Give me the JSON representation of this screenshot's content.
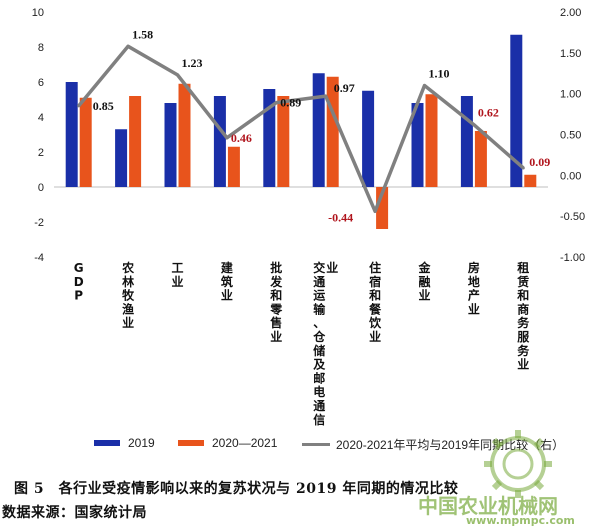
{
  "chart_data": {
    "type": "bar",
    "categories": [
      "GDP",
      "农林牧渔业",
      "工业",
      "建筑业",
      "批发和零售业",
      "交通运输、仓储及邮电通信业",
      "住宿和餐饮业",
      "金融业",
      "房地产业",
      "租赁和商务服务业"
    ],
    "series": [
      {
        "name": "2019",
        "type": "bar",
        "axis": "left",
        "color": "#1a2fa8",
        "values": [
          6.0,
          3.3,
          4.8,
          5.2,
          5.6,
          6.5,
          5.5,
          4.8,
          5.2,
          8.7
        ]
      },
      {
        "name": "2020—2021",
        "type": "bar",
        "axis": "left",
        "color": "#e8541c",
        "values": [
          5.1,
          5.2,
          5.9,
          2.3,
          5.2,
          6.3,
          -2.4,
          5.3,
          3.2,
          0.7
        ]
      },
      {
        "name": "2020-2021年平均与2019年同期比较（右）",
        "type": "line",
        "axis": "right",
        "color": "#808080",
        "values": [
          0.85,
          1.58,
          1.23,
          0.46,
          0.89,
          0.97,
          -0.44,
          1.1,
          0.62,
          0.09
        ]
      }
    ],
    "data_labels": [
      "0.85",
      "1.58",
      "1.23",
      "0.46",
      "0.89",
      "0.97",
      "-0.44",
      "1.10",
      "0.62",
      "0.09"
    ],
    "label_colors": [
      "#111111",
      "#111111",
      "#111111",
      "#b0141c",
      "#111111",
      "#111111",
      "#b0141c",
      "#111111",
      "#b0141c",
      "#b0141c"
    ],
    "ylim_left": [
      -4,
      10
    ],
    "ylim_right": [
      -1.0,
      2.0
    ],
    "left_ticks": [
      "-4",
      "-2",
      "0",
      "2",
      "4",
      "6",
      "8",
      "10"
    ],
    "right_ticks": [
      "-1.00",
      "-0.50",
      "0.00",
      "0.50",
      "1.00",
      "1.50",
      "2.00"
    ],
    "grid": false,
    "legend_position": "bottom"
  },
  "legend": {
    "bar2019": "2019",
    "bar2020": "2020—2021",
    "line": "2020-2021年平均与2019年同期比较（右）"
  },
  "caption": "图 5　各行业受疫情影响以来的复苏状况与 2019 年同期的情况比较",
  "source": "数据来源：国家统计局",
  "watermark": {
    "text": "中国农业机械网",
    "url": "www.mpmpc.com"
  }
}
